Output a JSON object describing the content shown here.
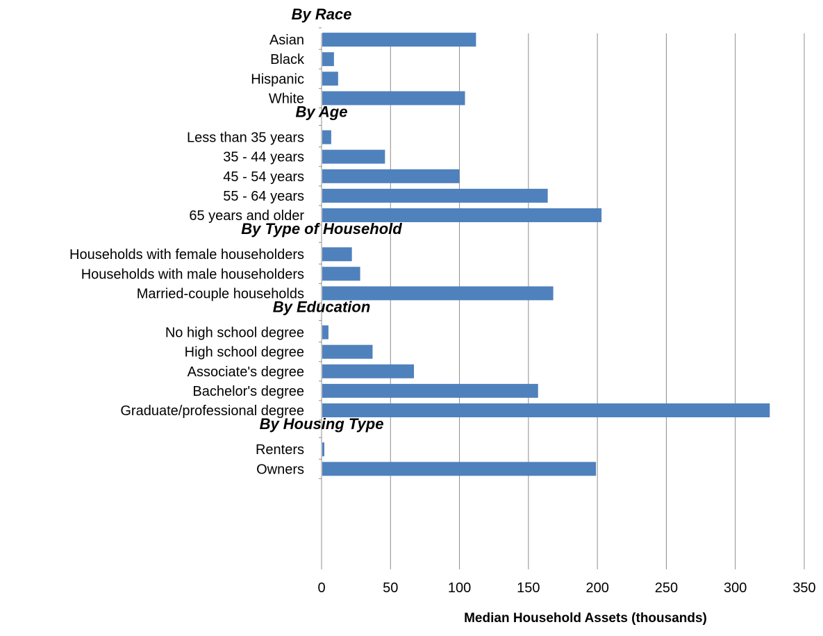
{
  "chart_data": {
    "type": "bar",
    "orientation": "horizontal",
    "xlabel": "Median Household Assets (thousands)",
    "xlim": [
      0,
      350
    ],
    "x_ticks": [
      "0",
      "50",
      "100",
      "150",
      "200",
      "250",
      "300",
      "350"
    ],
    "grid": "vertical",
    "legend": "none",
    "bar_color": "#4F81BD",
    "groups": [
      {
        "name": "By Race",
        "categories": [
          "Asian",
          "Black",
          "Hispanic",
          "White"
        ],
        "values": [
          112,
          9,
          12,
          104
        ]
      },
      {
        "name": "By Age",
        "categories": [
          "Less than 35 years",
          "35 - 44 years",
          "45 - 54 years",
          "55 - 64 years",
          "65 years and older"
        ],
        "values": [
          7,
          46,
          100,
          164,
          203
        ]
      },
      {
        "name": "By Type of Household",
        "categories": [
          "Households with female householders",
          "Households with male householders",
          "Married-couple households"
        ],
        "values": [
          22,
          28,
          168
        ]
      },
      {
        "name": "By Education",
        "categories": [
          "No high school degree",
          "High school degree",
          "Associate's degree",
          "Bachelor's degree",
          "Graduate/professional degree"
        ],
        "values": [
          5,
          37,
          67,
          157,
          325
        ]
      },
      {
        "name": "By Housing Type",
        "categories": [
          "Renters",
          "Owners"
        ],
        "values": [
          2,
          199
        ]
      }
    ]
  }
}
